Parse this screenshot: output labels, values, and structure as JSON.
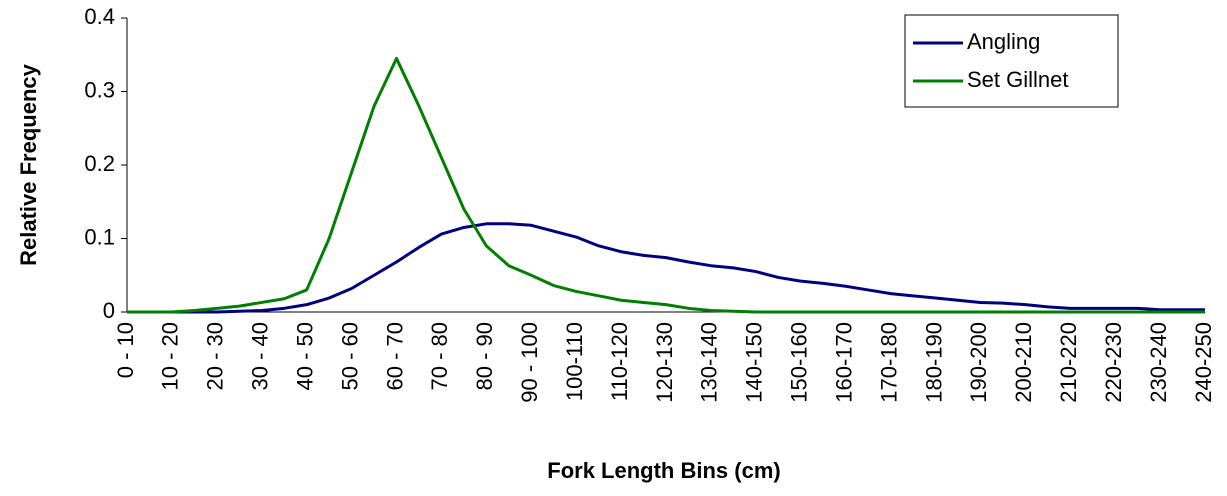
{
  "chart_data": {
    "type": "line",
    "x_label": "Fork Length Bins (cm)",
    "y_label": "Relative Frequency",
    "categories": [
      "0 - 10",
      null,
      "10 - 20",
      null,
      "20 - 30",
      null,
      "30 - 40",
      null,
      "40 - 50",
      null,
      "50 - 60",
      null,
      "60 - 70",
      null,
      "70 - 80",
      null,
      "80 - 90",
      null,
      "90 - 100",
      null,
      "100-110",
      null,
      "110-120",
      null,
      "120-130",
      null,
      "130-140",
      null,
      "140-150",
      null,
      "150-160",
      null,
      "160-170",
      null,
      "170-180",
      null,
      "180-190",
      null,
      "190-200",
      null,
      "200-210",
      null,
      "210-220",
      null,
      "220-230",
      null,
      "230-240",
      null,
      "240-250"
    ],
    "series": [
      {
        "name": "Angling",
        "color": "#000080",
        "values": [
          0,
          0,
          0,
          0,
          0,
          0.001,
          0.002,
          0.005,
          0.01,
          0.019,
          0.032,
          0.05,
          0.068,
          0.088,
          0.106,
          0.115,
          0.12,
          0.12,
          0.118,
          0.11,
          0.102,
          0.09,
          0.082,
          0.077,
          0.074,
          0.068,
          0.063,
          0.06,
          0.055,
          0.047,
          0.042,
          0.039,
          0.035,
          0.03,
          0.025,
          0.022,
          0.019,
          0.016,
          0.013,
          0.012,
          0.01,
          0.007,
          0.005,
          0.005,
          0.005,
          0.005,
          0.003,
          0.003,
          0.003
        ]
      },
      {
        "name": "Set Gillnet",
        "color": "#008000",
        "values": [
          0,
          0,
          0,
          0.002,
          0.005,
          0.008,
          0.013,
          0.018,
          0.03,
          0.1,
          0.19,
          0.28,
          0.345,
          0.28,
          0.21,
          0.14,
          0.09,
          0.063,
          0.05,
          0.036,
          0.028,
          0.022,
          0.016,
          0.013,
          0.01,
          0.005,
          0.002,
          0.001,
          0,
          0,
          0,
          0,
          0,
          0,
          0,
          0,
          0,
          0,
          0,
          0,
          0,
          0,
          0,
          0,
          0,
          0,
          0,
          0,
          0
        ]
      }
    ],
    "ylim": [
      0,
      0.4
    ],
    "yticks": [
      0,
      0.1,
      0.2,
      0.3,
      0.4
    ],
    "legend": "top-right"
  }
}
